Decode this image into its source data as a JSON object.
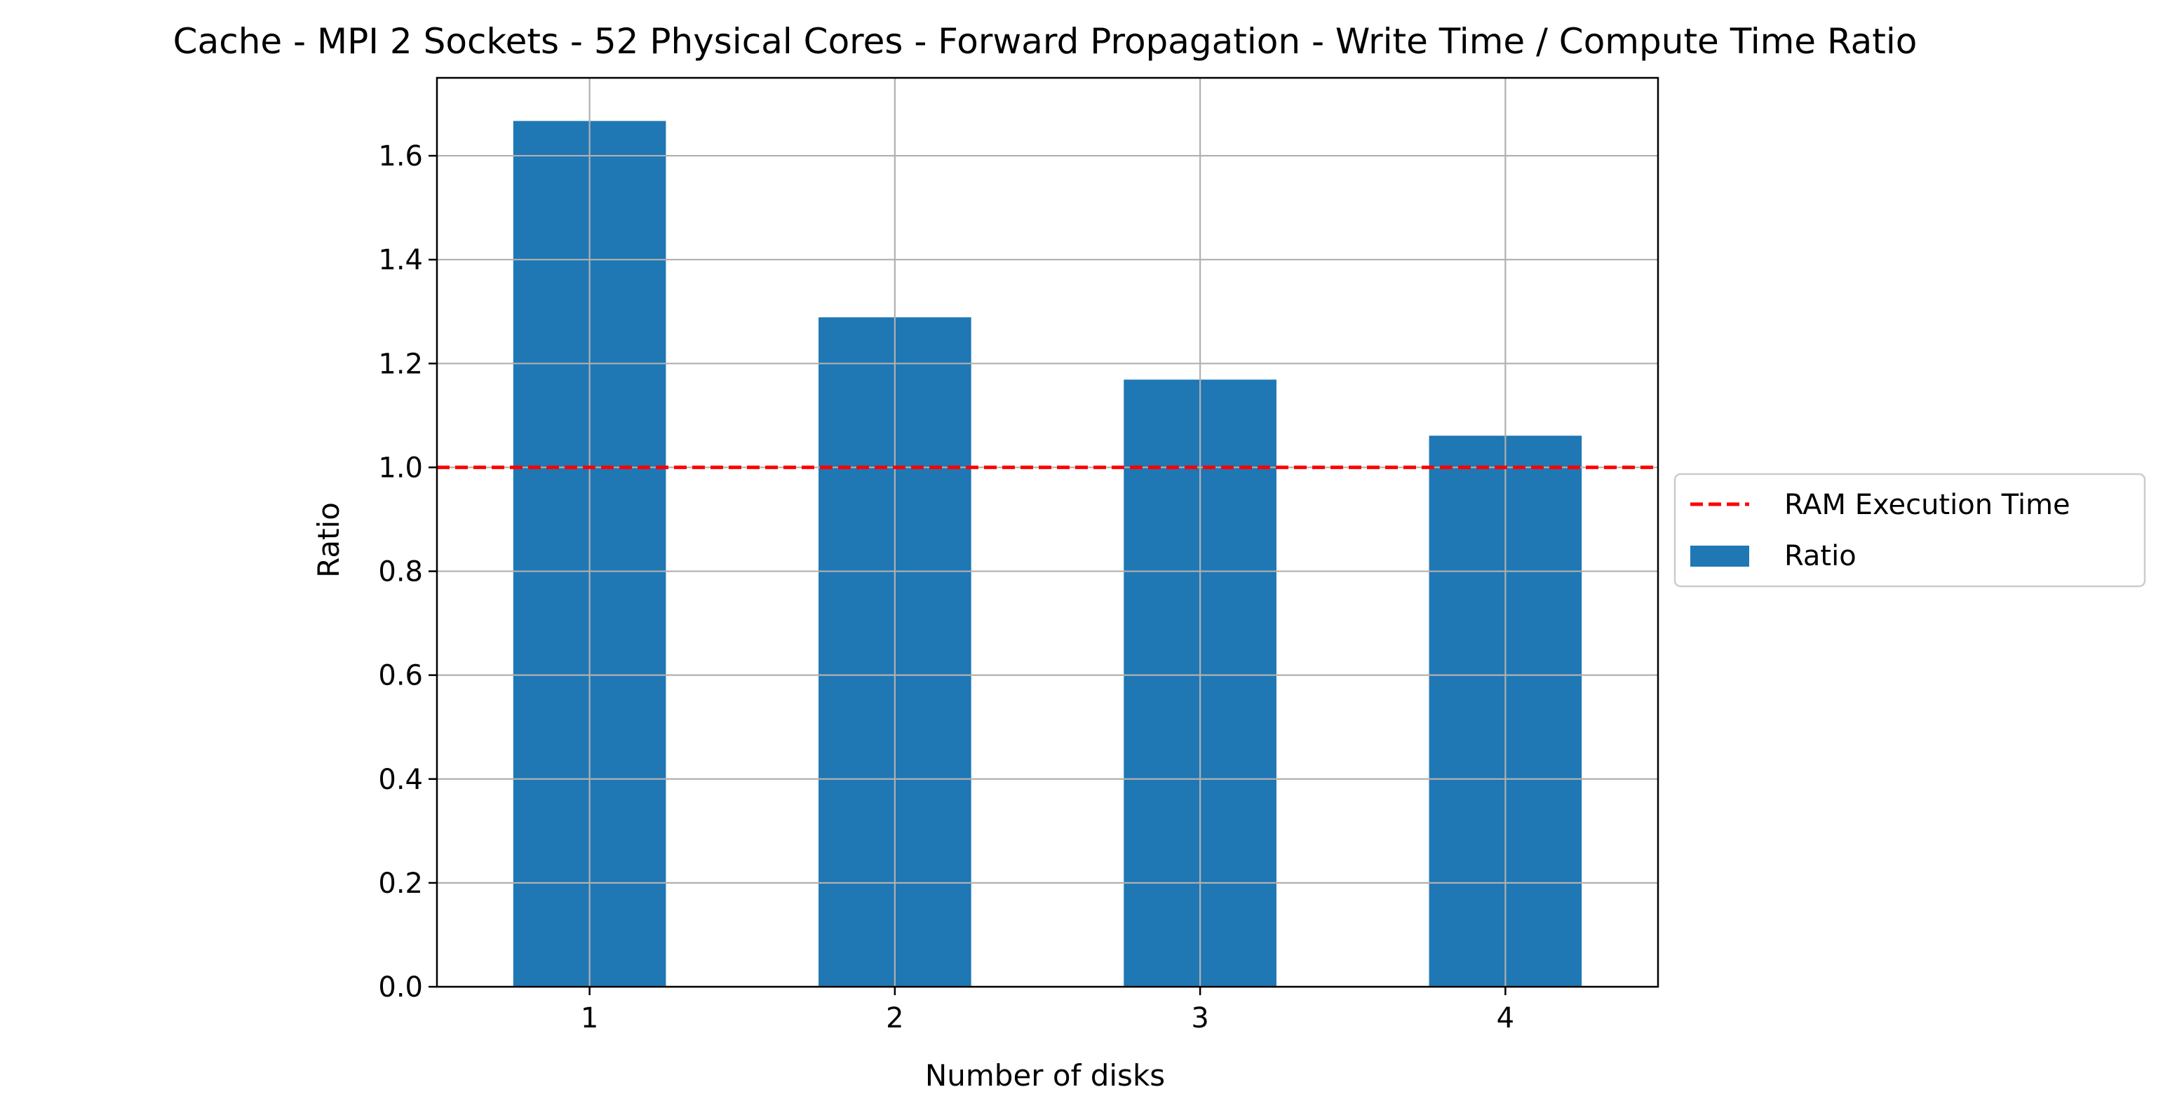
{
  "chart_data": {
    "type": "bar",
    "title": "Cache - MPI 2 Sockets - 52 Physical Cores - Forward Propagation - Write Time / Compute Time Ratio",
    "xlabel": "Number of disks",
    "ylabel": "Ratio",
    "categories": [
      "1",
      "2",
      "3",
      "4"
    ],
    "series": [
      {
        "name": "Ratio",
        "values": [
          1.667,
          1.289,
          1.169,
          1.061
        ],
        "color": "#1f77b4"
      }
    ],
    "reference_lines": [
      {
        "name": "RAM Execution Time",
        "y": 1.0,
        "color": "#ff0000",
        "style": "dashed"
      }
    ],
    "ylim": [
      0,
      1.75
    ],
    "yticks": [
      0.0,
      0.2,
      0.4,
      0.6,
      0.8,
      1.0,
      1.2,
      1.4,
      1.6
    ],
    "ytick_labels": [
      "0.0",
      "0.2",
      "0.4",
      "0.6",
      "0.8",
      "1.0",
      "1.2",
      "1.4",
      "1.6"
    ],
    "grid": true,
    "legend": "center-right, outside plot area",
    "legend_entries": [
      "RAM Execution Time",
      "Ratio"
    ],
    "grid_color": "#b0b0b0"
  }
}
